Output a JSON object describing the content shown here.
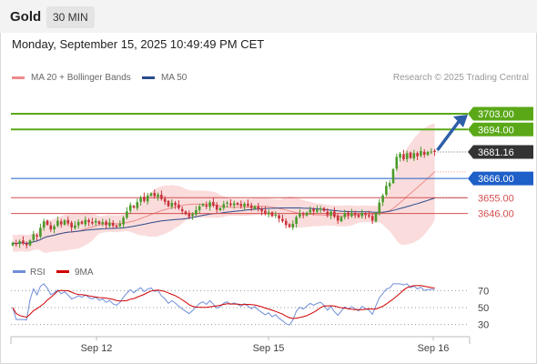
{
  "header": {
    "symbol": "Gold",
    "timeframe": "30 MIN"
  },
  "datetime": "Monday, September 15, 2025 10:49:49 PM CET",
  "legend": [
    {
      "label": "MA 20 + Bollinger Bands",
      "color": "#f08a8a"
    },
    {
      "label": "MA 50",
      "color": "#2b4b8a"
    }
  ],
  "credit": "Research © 2025 Trading Central",
  "colors": {
    "up": "#4a9a2a",
    "down": "#c8323c",
    "target": "#5aa818",
    "pivot": "#1e5fc8",
    "support": "#d45050",
    "arrow": "#2d5fa8",
    "rsi": "#6e8ed8",
    "rsi_ma": "#d00000",
    "band": "#f9d6d6"
  },
  "chart_data": [
    {
      "type": "candlestick",
      "y_axis_range": [
        3625,
        3716
      ],
      "levels": [
        {
          "value": "3703.00",
          "role": "target",
          "label_style": "green-box"
        },
        {
          "value": "3694.00",
          "role": "target",
          "label_style": "green-box"
        },
        {
          "value": "3681.16",
          "role": "last-price",
          "label_style": "dark-box"
        },
        {
          "value": "3666.00",
          "role": "pivot",
          "label_style": "blue-box"
        },
        {
          "value": "3655.00",
          "role": "support",
          "label_style": "red-text"
        },
        {
          "value": "3646.00",
          "role": "support",
          "label_style": "red-text"
        }
      ],
      "x_tick_labels": [
        "Sep 12",
        "Sep 15",
        "Sep 16"
      ],
      "closes": [
        3629.2,
        3628.4,
        3630.1,
        3628.9,
        3627.8,
        3630.6,
        3634.1,
        3632.9,
        3637.8,
        3641.5,
        3639.6,
        3636.9,
        3638.7,
        3641.9,
        3639.8,
        3642.1,
        3640.3,
        3638.0,
        3639.2,
        3641.1,
        3640.2,
        3642.4,
        3641.0,
        3640.3,
        3641.8,
        3640.1,
        3641.1,
        3639.4,
        3640.8,
        3639.0,
        3638.3,
        3640.1,
        3643.6,
        3647.2,
        3650.8,
        3649.3,
        3652.5,
        3655.1,
        3653.2,
        3656.2,
        3657.5,
        3655.9,
        3656.9,
        3654.3,
        3652.7,
        3650.2,
        3652.1,
        3650.8,
        3649.0,
        3647.3,
        3645.6,
        3644.1,
        3645.7,
        3647.9,
        3650.1,
        3651.3,
        3649.9,
        3652.4,
        3650.5,
        3648.2,
        3649.1,
        3651.3,
        3652.2,
        3650.8,
        3651.8,
        3651.0,
        3650.2,
        3651.6,
        3650.4,
        3649.1,
        3650.2,
        3648.5,
        3647.2,
        3645.9,
        3646.7,
        3644.5,
        3645.3,
        3643.1,
        3641.6,
        3639.4,
        3638.3,
        3640.1,
        3643.9,
        3646.0,
        3645.0,
        3646.5,
        3648.1,
        3647.2,
        3648.2,
        3648.8,
        3647.5,
        3645.1,
        3647.0,
        3644.2,
        3641.9,
        3644.0,
        3646.2,
        3645.0,
        3646.3,
        3645.1,
        3644.0,
        3646.3,
        3645.1,
        3644.3,
        3641.9,
        3646.4,
        3652.3,
        3656.3,
        3661.8,
        3663.4,
        3671.3,
        3678.3,
        3680.1,
        3677.0,
        3680.4,
        3677.7,
        3680.5,
        3678.7,
        3681.7,
        3679.6,
        3681.2,
        3681.4,
        3681.16
      ]
    },
    {
      "type": "line",
      "title": "RSI",
      "series_names": [
        "RSI",
        "9MA"
      ],
      "y_ticks": [
        "70",
        "50",
        "30"
      ],
      "y_range": [
        20,
        80
      ]
    }
  ]
}
